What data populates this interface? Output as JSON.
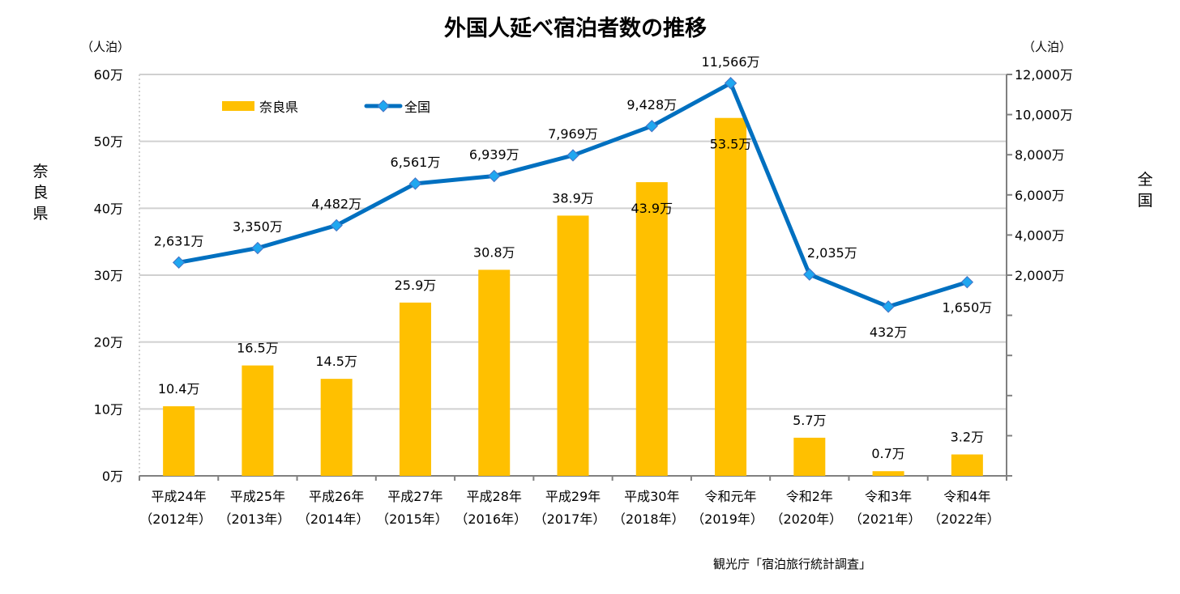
{
  "chart_data": {
    "type": "bar+line",
    "title": "外国人延べ宿泊者数の推移",
    "categories": [
      [
        "平成24年",
        "（2012年）"
      ],
      [
        "平成25年",
        "（2013年）"
      ],
      [
        "平成26年",
        "（2014年）"
      ],
      [
        "平成27年",
        "（2015年）"
      ],
      [
        "平成28年",
        "（2016年）"
      ],
      [
        "平成29年",
        "（2017年）"
      ],
      [
        "平成30年",
        "（2018年）"
      ],
      [
        "令和元年",
        "（2019年）"
      ],
      [
        "令和2年",
        "（2020年）"
      ],
      [
        "令和3年",
        "（2021年）"
      ],
      [
        "令和4年",
        "（2022年）"
      ]
    ],
    "series": [
      {
        "name": "奈良県",
        "type": "bar",
        "axis": "left",
        "color": "#FFC000",
        "values": [
          10.4,
          16.5,
          14.5,
          25.9,
          30.8,
          38.9,
          43.9,
          53.5,
          5.7,
          0.7,
          3.2
        ],
        "labels": [
          "10.4万",
          "16.5万",
          "14.5万",
          "25.9万",
          "30.8万",
          "38.9万",
          "43.9万",
          "53.5万",
          "5.7万",
          "0.7万",
          "3.2万"
        ]
      },
      {
        "name": "全国",
        "type": "line",
        "axis": "right",
        "color": "#0070C0",
        "marker_color": "#1FA7F0",
        "values": [
          2631,
          3350,
          4482,
          6561,
          6939,
          7969,
          9428,
          11566,
          2035,
          432,
          1650
        ],
        "labels": [
          "2,631万",
          "3,350万",
          "4,482万",
          "6,561万",
          "6,939万",
          "7,969万",
          "9,428万",
          "11,566万",
          "2,035万",
          "432万",
          "1,650万"
        ]
      }
    ],
    "left_axis": {
      "title": "奈良県",
      "unit": "（人泊）",
      "range": [
        0,
        60
      ],
      "ticks": [
        0,
        10,
        20,
        30,
        40,
        50,
        60
      ],
      "tick_labels": [
        "0万",
        "10万",
        "20万",
        "30万",
        "40万",
        "50万",
        "60万"
      ]
    },
    "right_axis": {
      "title": "全国",
      "unit": "（人泊）",
      "range": [
        -8000,
        12000
      ],
      "ticks": [
        2000,
        4000,
        6000,
        8000,
        10000,
        12000
      ],
      "tick_labels": [
        "2,000万",
        "4,000万",
        "6,000万",
        "8,000万",
        "10,000万",
        "12,000万"
      ],
      "minor_ticks": [
        -8000,
        -6000,
        -4000,
        -2000,
        0
      ]
    },
    "grid": true,
    "legend": {
      "placement": "top-left",
      "entries": [
        "奈良県",
        "全国"
      ]
    },
    "source": "観光庁「宿泊旅行統計調査」"
  }
}
